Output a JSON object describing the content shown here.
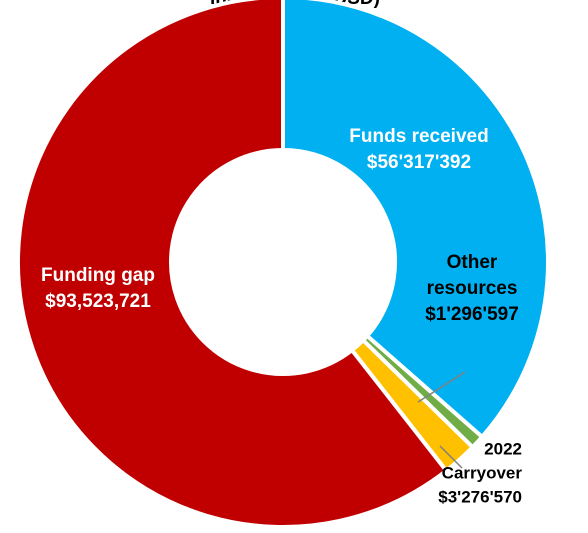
{
  "chart_data": {
    "type": "pie",
    "variant": "donut",
    "title_partial": "ing status (in USD)",
    "series": [
      {
        "name": "Funds received",
        "label_lines": [
          "Funds received",
          "$56'317'392"
        ],
        "value": 56317392,
        "color": "#00B0F0"
      },
      {
        "name": "Other resources",
        "label_lines": [
          "Other",
          "resources",
          "$1'296'597"
        ],
        "value": 1296597,
        "color": "#70AD47"
      },
      {
        "name": "2022 Carryover",
        "label_lines": [
          "2022",
          "Carryover",
          "$3'276'570"
        ],
        "value": 3276570,
        "color": "#FFC000"
      },
      {
        "name": "Funding gap",
        "label_lines": [
          "Funding gap",
          "$93,523,721"
        ],
        "value": 93523721,
        "color": "#C00000"
      }
    ],
    "legend": "none",
    "label_colors": {
      "on_slice": "#ffffff",
      "outside": "#000000"
    }
  }
}
